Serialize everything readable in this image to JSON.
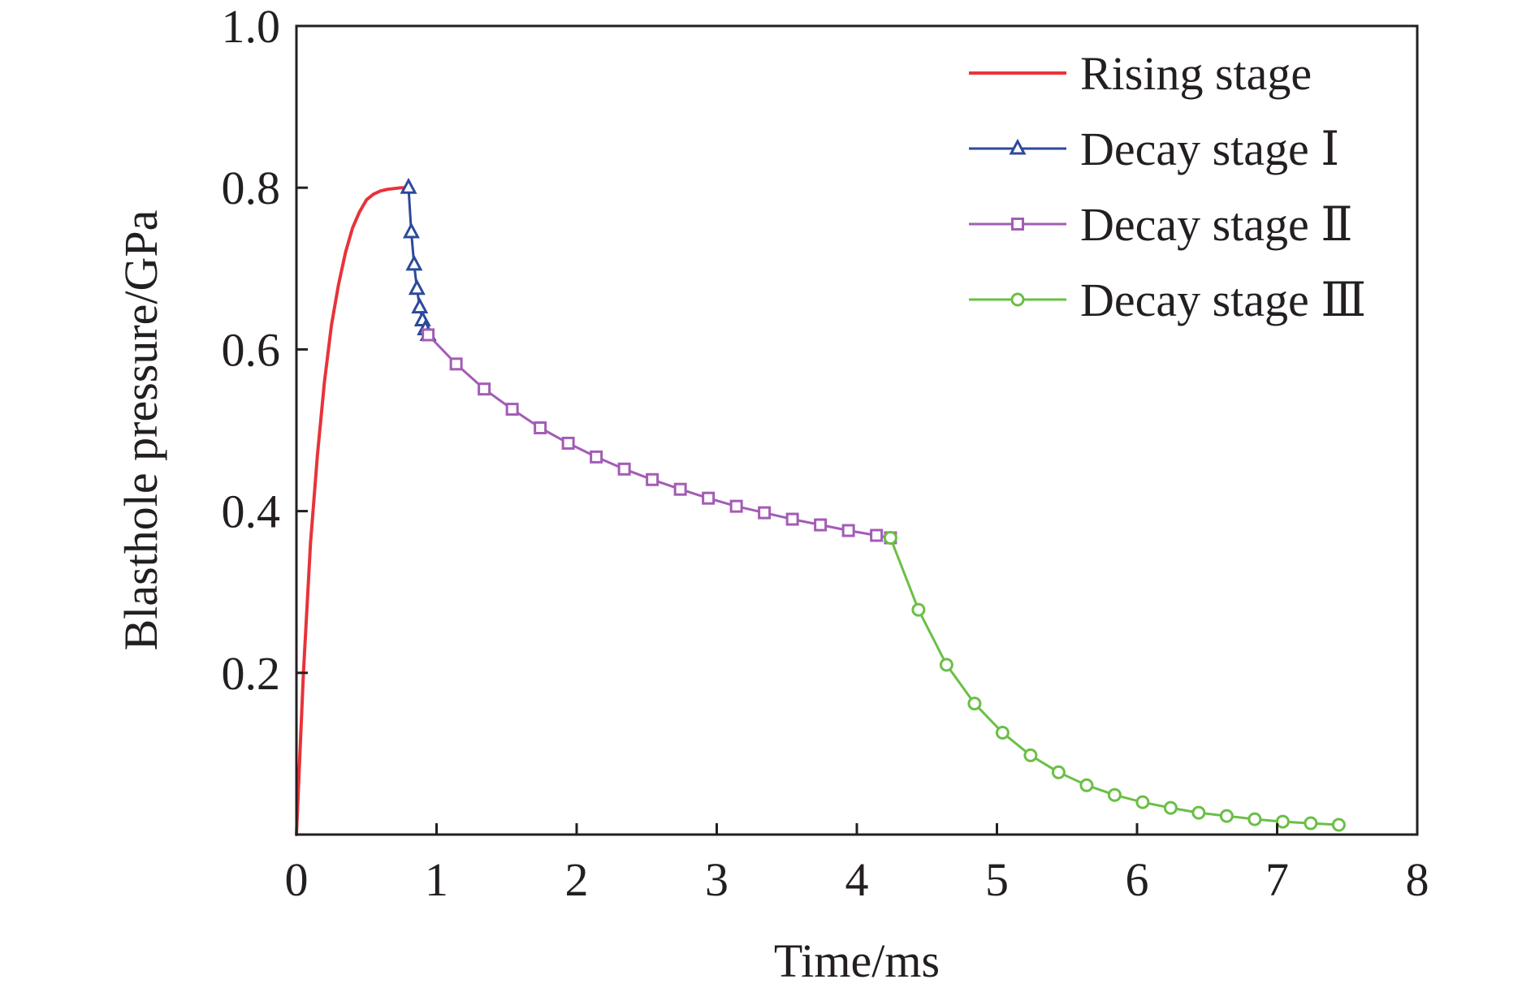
{
  "chart_data": {
    "type": "line",
    "title": "",
    "xlabel": "Time/ms",
    "ylabel": "Blasthole pressure/GPa",
    "xlim": [
      0,
      8
    ],
    "ylim": [
      0,
      1.0
    ],
    "x_ticks": [
      0,
      1,
      2,
      3,
      4,
      5,
      6,
      7,
      8
    ],
    "x_tick_labels": [
      "0",
      "1",
      "2",
      "3",
      "4",
      "5",
      "6",
      "7",
      "8"
    ],
    "y_ticks": [
      0.2,
      0.4,
      0.6,
      0.8,
      1.0
    ],
    "y_tick_labels": [
      "0.2",
      "0.4",
      "0.6",
      "0.8",
      "1.0"
    ],
    "grid": false,
    "legend_position": "top-right",
    "series": [
      {
        "name": "Rising stage",
        "color": "#e8333a",
        "marker": "none",
        "x": [
          0,
          0.05,
          0.1,
          0.15,
          0.2,
          0.25,
          0.3,
          0.35,
          0.4,
          0.45,
          0.5,
          0.55,
          0.6,
          0.65,
          0.7,
          0.75,
          0.8
        ],
        "y": [
          0,
          0.2,
          0.36,
          0.47,
          0.56,
          0.63,
          0.68,
          0.72,
          0.75,
          0.77,
          0.785,
          0.792,
          0.796,
          0.798,
          0.799,
          0.8,
          0.8
        ]
      },
      {
        "name": "Decay stage Ⅰ",
        "color": "#2b4a9b",
        "marker": "triangle",
        "x": [
          0.8,
          0.82,
          0.84,
          0.86,
          0.88,
          0.9,
          0.92,
          0.94
        ],
        "y": [
          0.8,
          0.745,
          0.705,
          0.675,
          0.652,
          0.636,
          0.625,
          0.618
        ]
      },
      {
        "name": "Decay stage Ⅱ",
        "color": "#a35cb5",
        "marker": "square",
        "x": [
          0.94,
          1.14,
          1.34,
          1.54,
          1.74,
          1.94,
          2.14,
          2.34,
          2.54,
          2.74,
          2.94,
          3.14,
          3.34,
          3.54,
          3.74,
          3.94,
          4.14,
          4.24
        ],
        "y": [
          0.618,
          0.582,
          0.551,
          0.526,
          0.503,
          0.484,
          0.467,
          0.452,
          0.439,
          0.427,
          0.416,
          0.406,
          0.398,
          0.39,
          0.383,
          0.376,
          0.37,
          0.367
        ]
      },
      {
        "name": "Decay stage Ⅲ",
        "color": "#6abf45",
        "marker": "circle",
        "x": [
          4.24,
          4.44,
          4.64,
          4.84,
          5.04,
          5.24,
          5.44,
          5.64,
          5.84,
          6.04,
          6.24,
          6.44,
          6.64,
          6.84,
          7.04,
          7.24,
          7.44
        ],
        "y": [
          0.367,
          0.278,
          0.21,
          0.162,
          0.126,
          0.098,
          0.077,
          0.061,
          0.049,
          0.04,
          0.033,
          0.027,
          0.023,
          0.019,
          0.016,
          0.014,
          0.012
        ]
      }
    ]
  }
}
